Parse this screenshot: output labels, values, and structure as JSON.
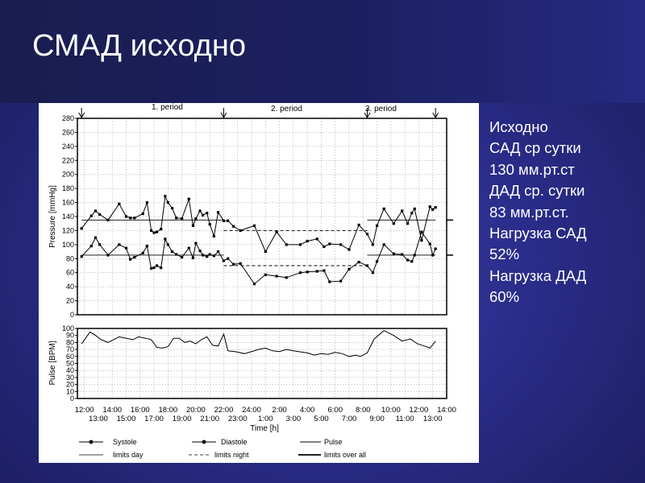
{
  "slide": {
    "title": "СМАД исходно",
    "info_lines": [
      "Исходно",
      "САД ср сутки",
      "130 мм.рт.ст",
      "ДАД ср. сутки",
      "83 мм.рт.ст.",
      "Нагрузка САД",
      "52%",
      "Нагрузка ДАД",
      "60%"
    ]
  },
  "chart_data": [
    {
      "type": "line",
      "ylabel": "Pressure [mmHg]",
      "ylim": [
        0,
        280
      ],
      "yticks": [
        "0",
        "20",
        "40",
        "60",
        "80",
        "100",
        "120",
        "140",
        "160",
        "180",
        "200",
        "220",
        "240",
        "260",
        "280"
      ],
      "x_range_hours": [
        11.5,
        38
      ],
      "periods": [
        {
          "label": "1. period",
          "center": 16.5
        },
        {
          "label": "2. period",
          "center": 27.5
        },
        {
          "label": "3. period",
          "center": 33.5
        }
      ],
      "period_markers": [
        11.8,
        22,
        32.3,
        37.2
      ],
      "limits_day": {
        "systolic": 135,
        "diastolic": 85,
        "ranges": [
          [
            11.8,
            22
          ],
          [
            32.3,
            37.2
          ]
        ]
      },
      "limits_night": {
        "systolic": 120,
        "diastolic": 70,
        "range": [
          22,
          32.3
        ]
      },
      "series": [
        {
          "name": "Systole",
          "x": [
            11.8,
            12.5,
            12.8,
            13.1,
            13.7,
            14.5,
            15.0,
            15.3,
            15.6,
            16.2,
            16.5,
            16.8,
            17.0,
            17.2,
            17.5,
            17.8,
            18.0,
            18.3,
            18.6,
            19.0,
            19.5,
            19.8,
            20.0,
            20.3,
            20.5,
            20.8,
            21.0,
            21.3,
            21.6,
            22.0,
            22.3,
            22.7,
            23.2,
            24.2,
            25.0,
            25.8,
            26.5,
            27.5,
            28.0,
            28.7,
            29.2,
            29.6,
            30.4,
            31.0,
            31.7,
            32.3,
            32.7,
            33.0,
            33.5,
            34.2,
            34.8,
            35.2,
            35.5,
            35.7,
            36.2,
            36.8,
            37.0,
            37.2
          ],
          "values": [
            123,
            141,
            148,
            143,
            135,
            158,
            140,
            138,
            138,
            144,
            160,
            120,
            117,
            118,
            122,
            169,
            160,
            152,
            138,
            137,
            165,
            127,
            137,
            148,
            142,
            145,
            129,
            112,
            146,
            134,
            134,
            126,
            120,
            127,
            90,
            118,
            100,
            100,
            105,
            108,
            97,
            101,
            100,
            93,
            128,
            115,
            100,
            127,
            151,
            130,
            148,
            130,
            145,
            151,
            106,
            154,
            150,
            153
          ]
        },
        {
          "name": "Diastole",
          "x": [
            11.8,
            12.5,
            12.8,
            13.1,
            13.7,
            14.5,
            15.0,
            15.3,
            15.6,
            16.2,
            16.5,
            16.8,
            17.0,
            17.2,
            17.5,
            17.8,
            18.0,
            18.3,
            18.6,
            19.0,
            19.5,
            19.8,
            20.0,
            20.3,
            20.5,
            20.8,
            21.0,
            21.3,
            21.6,
            22.0,
            22.3,
            22.7,
            23.2,
            24.2,
            25.0,
            25.8,
            26.5,
            27.5,
            28.0,
            28.7,
            29.2,
            29.6,
            30.4,
            31.0,
            31.7,
            32.3,
            32.7,
            33.0,
            33.5,
            34.2,
            34.8,
            35.2,
            35.5,
            35.7,
            36.2,
            36.8,
            37.0,
            37.2
          ],
          "values": [
            83,
            98,
            110,
            100,
            85,
            100,
            95,
            79,
            82,
            88,
            98,
            66,
            67,
            70,
            67,
            108,
            100,
            90,
            86,
            82,
            95,
            81,
            102,
            91,
            85,
            83,
            86,
            84,
            90,
            77,
            80,
            72,
            73,
            44,
            57,
            55,
            53,
            60,
            61,
            62,
            63,
            47,
            48,
            65,
            75,
            70,
            60,
            76,
            100,
            87,
            86,
            78,
            76,
            85,
            118,
            101,
            85,
            94
          ]
        },
        {
          "name": "Pulse",
          "x": [
            11.8,
            12.4,
            12.8,
            13.2,
            13.7,
            14.5,
            15.0,
            15.5,
            15.9,
            16.4,
            16.8,
            17.2,
            17.6,
            18.0,
            18.4,
            18.8,
            19.2,
            19.6,
            20.0,
            20.4,
            20.8,
            21.2,
            21.6,
            22.0,
            22.3,
            22.8,
            23.5,
            24.5,
            25.0,
            25.5,
            26.0,
            26.5,
            27.0,
            28.0,
            28.5,
            29.0,
            29.5,
            30.0,
            30.5,
            31.0,
            31.5,
            31.8,
            32.3,
            32.8,
            33.5,
            34.2,
            34.8,
            35.4,
            35.9,
            36.4,
            36.8,
            37.2
          ],
          "values": [
            78,
            95,
            90,
            84,
            80,
            88,
            86,
            84,
            88,
            86,
            84,
            73,
            72,
            74,
            86,
            86,
            80,
            82,
            78,
            84,
            88,
            76,
            75,
            92,
            68,
            67,
            64,
            70,
            72,
            68,
            67,
            70,
            68,
            65,
            62,
            64,
            63,
            66,
            64,
            60,
            62,
            60,
            65,
            85,
            97,
            90,
            82,
            85,
            78,
            75,
            72,
            82
          ]
        }
      ]
    },
    {
      "type": "line",
      "ylabel": "Pulse [BPM]",
      "ylim": [
        0,
        100
      ],
      "yticks": [
        "0",
        "10",
        "20",
        "30",
        "40",
        "50",
        "60",
        "70",
        "80",
        "90",
        "100"
      ],
      "xlabel": "Time [h]",
      "x_labels_top": [
        "12:00",
        "14:00",
        "16:00",
        "18:00",
        "20:00",
        "22:00",
        "24:00",
        "2:00",
        "4:00",
        "6:00",
        "8:00",
        "10:00",
        "12:00",
        "14:00"
      ],
      "x_labels_bottom": [
        "13:00",
        "15:00",
        "17:00",
        "19:00",
        "21:00",
        "23:00",
        "1:00",
        "3:00",
        "5:00",
        "7:00",
        "9:00",
        "11:00",
        "13:00"
      ],
      "legend": [
        "Systole",
        "Diastole",
        "Pulse",
        "limits day",
        "limits night",
        "limits over all"
      ]
    }
  ]
}
